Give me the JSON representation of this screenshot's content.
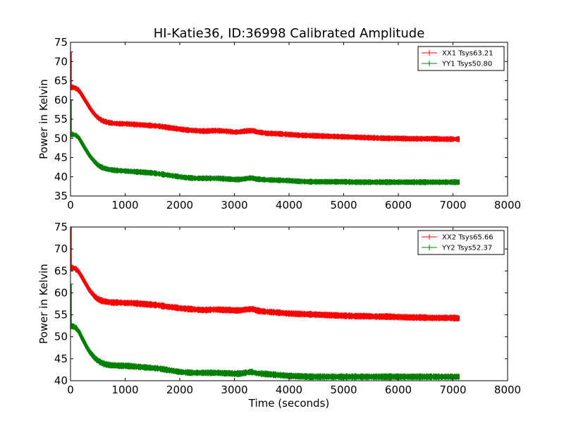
{
  "figure": {
    "title": "HI-Katie36, ID:36998 Calibrated Amplitude",
    "xlabel": "Time (seconds)"
  },
  "chart_data": [
    {
      "type": "line",
      "title": "HI-Katie36, ID:36998 Calibrated Amplitude",
      "xlabel": "",
      "ylabel": "Power in Kelvin",
      "xlim": [
        0,
        8000
      ],
      "ylim": [
        35,
        75
      ],
      "xticks": [
        0,
        1000,
        2000,
        3000,
        4000,
        5000,
        6000,
        7000,
        8000
      ],
      "yticks": [
        35,
        40,
        45,
        50,
        55,
        60,
        65,
        70,
        75
      ],
      "legend": "top-right",
      "grid": false,
      "series": [
        {
          "name": "XX1 Tsys63.21",
          "color": "#ff0000",
          "spike": [
            [
              0,
              63.2
            ],
            [
              0,
              72.5
            ]
          ],
          "x": [
            0,
            50,
            100,
            150,
            200,
            250,
            300,
            350,
            400,
            450,
            500,
            550,
            600,
            650,
            700,
            750,
            800,
            900,
            1000,
            1100,
            1200,
            1300,
            1400,
            1500,
            1600,
            1700,
            1800,
            1900,
            2000,
            2100,
            2200,
            2300,
            2400,
            2500,
            2600,
            2700,
            2800,
            2900,
            3000,
            3100,
            3200,
            3300,
            3350,
            3400,
            3500,
            3600,
            3800,
            4000,
            4200,
            4400,
            4600,
            4800,
            5000,
            5200,
            5400,
            5600,
            5800,
            6000,
            6200,
            6400,
            6600,
            6800,
            7000,
            7120
          ],
          "y": [
            63.2,
            63.3,
            63.0,
            62.5,
            61.5,
            60.3,
            59.2,
            58.0,
            57.0,
            56.1,
            55.4,
            54.9,
            54.5,
            54.3,
            54.1,
            54.0,
            53.9,
            53.8,
            53.8,
            53.7,
            53.6,
            53.5,
            53.4,
            53.3,
            53.2,
            53.0,
            52.8,
            52.6,
            52.4,
            52.2,
            52.1,
            52.0,
            51.9,
            51.9,
            52.0,
            52.0,
            51.9,
            51.8,
            51.6,
            51.7,
            51.9,
            52.0,
            52.0,
            51.7,
            51.5,
            51.3,
            51.2,
            51.0,
            50.8,
            50.7,
            50.6,
            50.5,
            50.4,
            50.3,
            50.2,
            50.1,
            50.0,
            50.0,
            49.9,
            49.9,
            49.9,
            49.8,
            49.8,
            49.8
          ]
        },
        {
          "name": "YY1 Tsys50.80",
          "color": "#008000",
          "spike": [
            [
              0,
              51.0
            ],
            [
              0,
              60.0
            ]
          ],
          "x": [
            0,
            50,
            100,
            150,
            200,
            250,
            300,
            350,
            400,
            450,
            500,
            550,
            600,
            650,
            700,
            750,
            800,
            900,
            1000,
            1100,
            1200,
            1300,
            1400,
            1500,
            1600,
            1700,
            1800,
            1900,
            2000,
            2100,
            2200,
            2300,
            2400,
            2500,
            2600,
            2700,
            2800,
            2900,
            3000,
            3100,
            3200,
            3300,
            3350,
            3400,
            3500,
            3600,
            3800,
            4000,
            4200,
            4400,
            4600,
            4800,
            5000,
            5200,
            5400,
            5600,
            5800,
            6000,
            6200,
            6400,
            6600,
            6800,
            7000,
            7120
          ],
          "y": [
            51.0,
            51.0,
            50.8,
            50.2,
            49.0,
            47.8,
            46.6,
            45.5,
            44.6,
            43.8,
            43.1,
            42.6,
            42.3,
            42.1,
            41.9,
            41.8,
            41.7,
            41.6,
            41.5,
            41.4,
            41.3,
            41.2,
            41.1,
            41.0,
            40.8,
            40.6,
            40.4,
            40.2,
            40.0,
            39.8,
            39.7,
            39.6,
            39.6,
            39.6,
            39.6,
            39.6,
            39.5,
            39.4,
            39.3,
            39.3,
            39.5,
            39.7,
            39.6,
            39.4,
            39.3,
            39.2,
            39.1,
            39.0,
            38.8,
            38.7,
            38.7,
            38.7,
            38.7,
            38.6,
            38.6,
            38.6,
            38.6,
            38.6,
            38.6,
            38.6,
            38.6,
            38.6,
            38.6,
            38.6
          ]
        }
      ]
    },
    {
      "type": "line",
      "title": "",
      "xlabel": "Time (seconds)",
      "ylabel": "Power in Kelvin",
      "xlim": [
        0,
        8000
      ],
      "ylim": [
        40,
        75
      ],
      "xticks": [
        0,
        1000,
        2000,
        3000,
        4000,
        5000,
        6000,
        7000,
        8000
      ],
      "yticks": [
        40,
        45,
        50,
        55,
        60,
        65,
        70,
        75
      ],
      "legend": "top-right",
      "grid": false,
      "series": [
        {
          "name": "XX2 Tsys65.66",
          "color": "#ff0000",
          "spike": [
            [
              0,
              65.7
            ],
            [
              0,
              75.0
            ]
          ],
          "x": [
            0,
            50,
            100,
            150,
            200,
            250,
            300,
            350,
            400,
            450,
            500,
            550,
            600,
            650,
            700,
            750,
            800,
            900,
            1000,
            1100,
            1200,
            1300,
            1400,
            1500,
            1600,
            1700,
            1800,
            1900,
            2000,
            2100,
            2200,
            2300,
            2400,
            2500,
            2600,
            2700,
            2800,
            2900,
            3000,
            3100,
            3200,
            3300,
            3350,
            3400,
            3500,
            3600,
            3800,
            4000,
            4200,
            4400,
            4600,
            4800,
            5000,
            5200,
            5400,
            5600,
            5800,
            6000,
            6200,
            6400,
            6600,
            6800,
            7000,
            7120
          ],
          "y": [
            65.7,
            65.7,
            65.4,
            64.8,
            63.8,
            62.7,
            61.6,
            60.6,
            59.8,
            59.1,
            58.6,
            58.3,
            58.1,
            58.0,
            57.9,
            57.8,
            57.8,
            57.8,
            57.7,
            57.7,
            57.6,
            57.5,
            57.4,
            57.3,
            57.2,
            57.0,
            56.8,
            56.7,
            56.5,
            56.4,
            56.3,
            56.2,
            56.1,
            56.1,
            56.2,
            56.2,
            56.1,
            56.1,
            56.0,
            56.0,
            56.2,
            56.3,
            56.3,
            56.0,
            55.8,
            55.7,
            55.5,
            55.3,
            55.2,
            55.1,
            55.0,
            54.9,
            54.8,
            54.7,
            54.7,
            54.6,
            54.6,
            54.5,
            54.4,
            54.4,
            54.3,
            54.3,
            54.3,
            54.2
          ]
        },
        {
          "name": "YY2 Tsys52.37",
          "color": "#008000",
          "spike": [
            [
              0,
              52.4
            ],
            [
              0,
              62.0
            ]
          ],
          "x": [
            0,
            50,
            100,
            150,
            200,
            250,
            300,
            350,
            400,
            450,
            500,
            550,
            600,
            650,
            700,
            750,
            800,
            900,
            1000,
            1100,
            1200,
            1300,
            1400,
            1500,
            1600,
            1700,
            1800,
            1900,
            2000,
            2100,
            2200,
            2300,
            2400,
            2500,
            2600,
            2700,
            2800,
            2900,
            3000,
            3100,
            3200,
            3300,
            3350,
            3400,
            3500,
            3600,
            3800,
            4000,
            4200,
            4400,
            4600,
            4800,
            5000,
            5200,
            5400,
            5600,
            5800,
            6000,
            6200,
            6400,
            6600,
            6800,
            7000,
            7120
          ],
          "y": [
            52.4,
            52.4,
            52.0,
            51.3,
            50.0,
            48.8,
            47.6,
            46.6,
            45.8,
            45.1,
            44.6,
            44.2,
            43.9,
            43.7,
            43.6,
            43.5,
            43.5,
            43.4,
            43.4,
            43.3,
            43.2,
            43.1,
            43.0,
            42.9,
            42.8,
            42.6,
            42.4,
            42.2,
            42.0,
            41.9,
            41.8,
            41.8,
            41.8,
            41.8,
            41.8,
            41.8,
            41.7,
            41.7,
            41.6,
            41.6,
            41.8,
            42.0,
            41.9,
            41.7,
            41.6,
            41.5,
            41.3,
            41.1,
            41.0,
            40.9,
            40.9,
            40.9,
            40.9,
            40.9,
            40.9,
            40.9,
            40.9,
            40.9,
            40.9,
            40.9,
            40.9,
            40.9,
            40.9,
            40.9
          ]
        }
      ]
    }
  ]
}
